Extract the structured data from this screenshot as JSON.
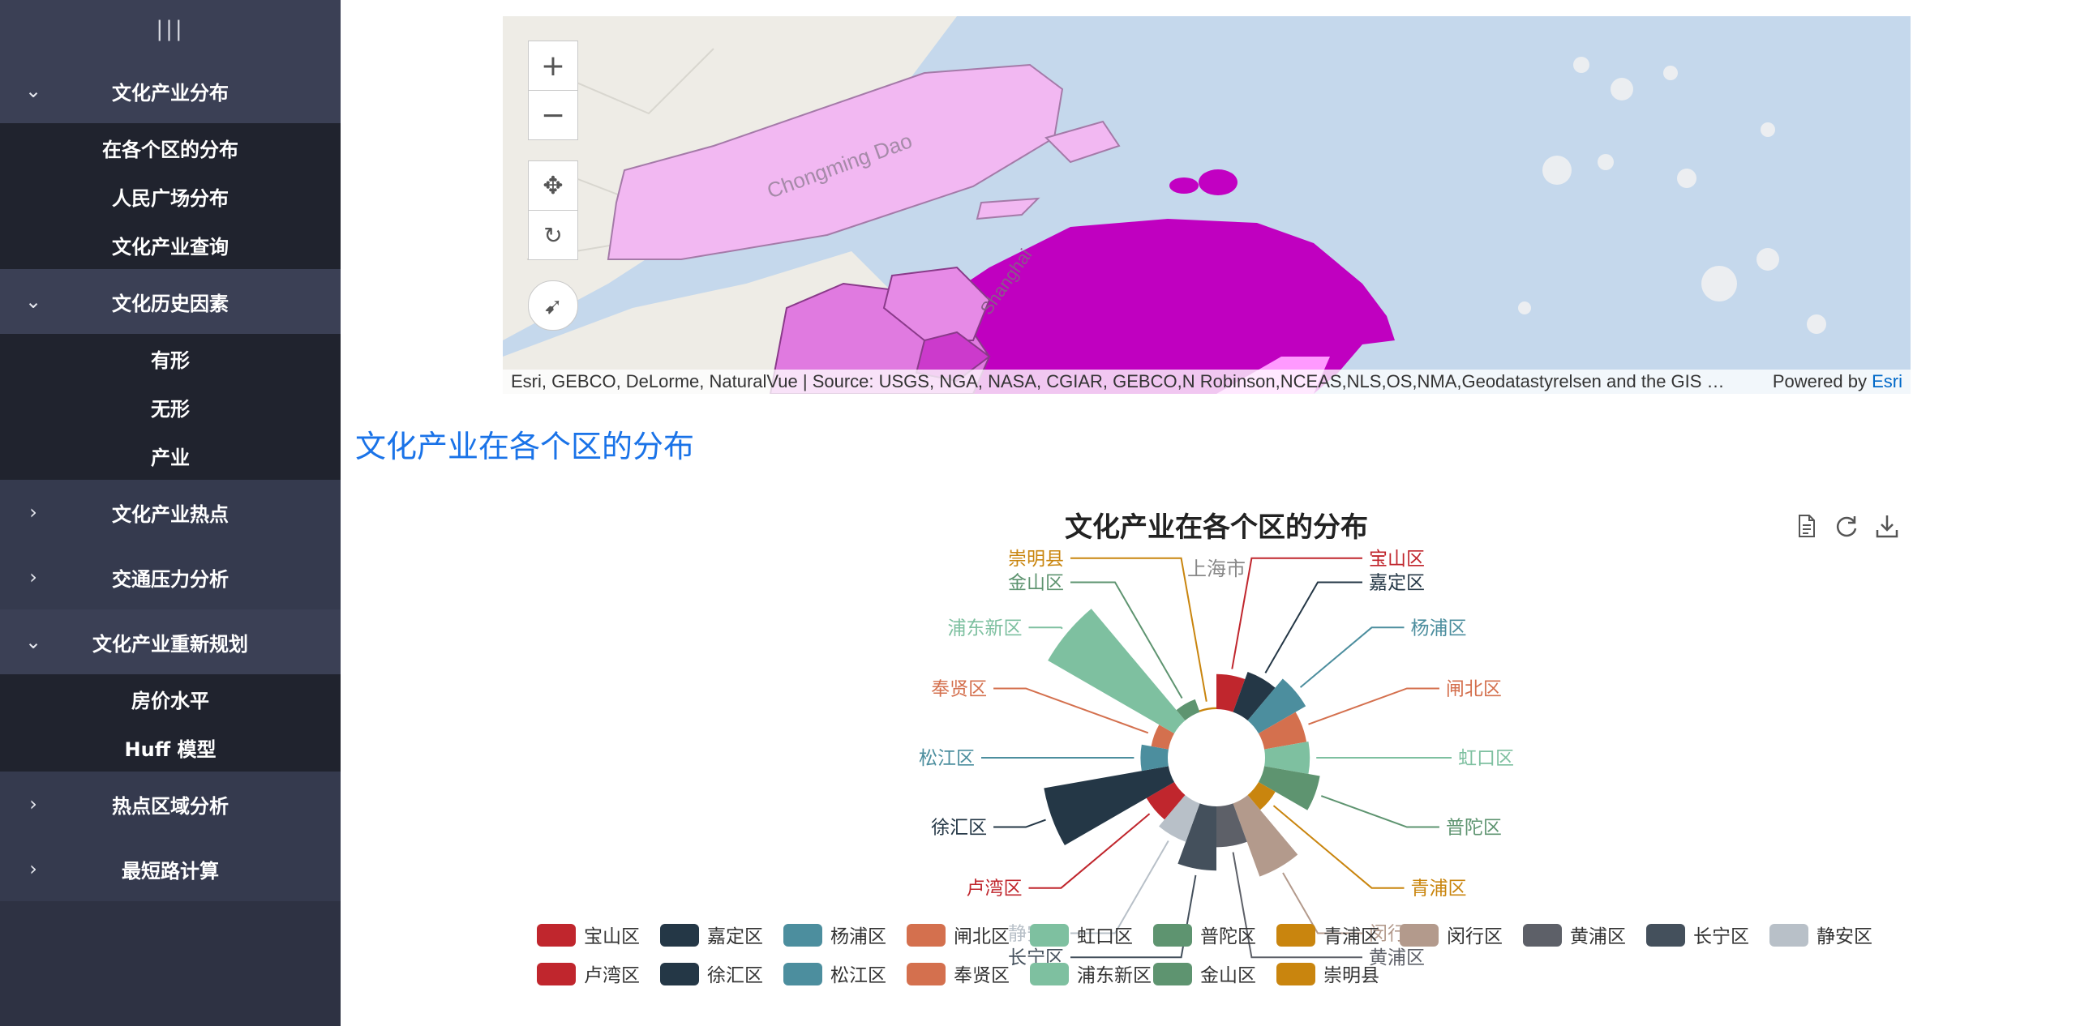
{
  "sidebar": {
    "toggle_icon": "menu-toggle-icon",
    "groups": [
      {
        "label": "文化产业分布",
        "expanded": true,
        "items": [
          "在各个区的分布",
          "人民广场分布",
          "文化产业查询"
        ]
      },
      {
        "label": "文化历史因素",
        "expanded": true,
        "items": [
          "有形",
          "无形",
          "产业"
        ]
      },
      {
        "label": "文化产业热点",
        "expanded": false,
        "items": []
      },
      {
        "label": "交通压力分析",
        "expanded": false,
        "items": []
      },
      {
        "label": "文化产业重新规划",
        "expanded": true,
        "items": [
          "房价水平",
          "Huff 模型"
        ]
      },
      {
        "label": "热点区域分析",
        "expanded": false,
        "items": []
      },
      {
        "label": "最短路计算",
        "expanded": false,
        "items": []
      }
    ]
  },
  "map": {
    "labels": {
      "island": "Chongming Dao",
      "city": "Shanghai"
    },
    "zoom_in_icon": "plus-icon",
    "zoom_out_icon": "minus-icon",
    "pan_icon": "move-icon",
    "rotate_icon": "rotate-icon",
    "compass_icon": "compass-icon",
    "attribution": "Esri, GEBCO, DeLorme, NaturalVue | Source: USGS, NGA, NASA, CGIAR, GEBCO,N Robinson,NCEAS,NLS,OS,NMA,Geodatastyrelsen and the GIS …",
    "powered_prefix": "Powered by ",
    "powered_link": "Esri"
  },
  "section": {
    "heading": "文化产业在各个区的分布"
  },
  "chart_data": {
    "type": "nightingale-rose",
    "title": "文化产业在各个区的分布",
    "subtitle": "上海市",
    "toolbox": [
      "data-view-icon",
      "restore-icon",
      "save-image-icon"
    ],
    "categories": [
      "宝山区",
      "嘉定区",
      "杨浦区",
      "闸北区",
      "虹口区",
      "普陀区",
      "青浦区",
      "闵行区",
      "黄浦区",
      "长宁区",
      "静安区",
      "卢湾区",
      "徐汇区",
      "松江区",
      "奉贤区",
      "浦东新区",
      "金山区",
      "崇明县"
    ],
    "values": [
      36,
      44,
      56,
      44,
      46,
      58,
      20,
      80,
      42,
      66,
      42,
      33,
      130,
      28,
      18,
      150,
      14,
      2
    ],
    "colors": [
      "#c0262d",
      "#243746",
      "#4c8e9e",
      "#d4704e",
      "#7ec0a0",
      "#5e9470",
      "#c9850e",
      "#b39a8c",
      "#5d6068",
      "#44505c",
      "#b8c0c8",
      "#c0262d",
      "#243746",
      "#4c8e9e",
      "#d4704e",
      "#7ec0a0",
      "#5e9470",
      "#c9850e"
    ],
    "legend_position": "bottom"
  }
}
